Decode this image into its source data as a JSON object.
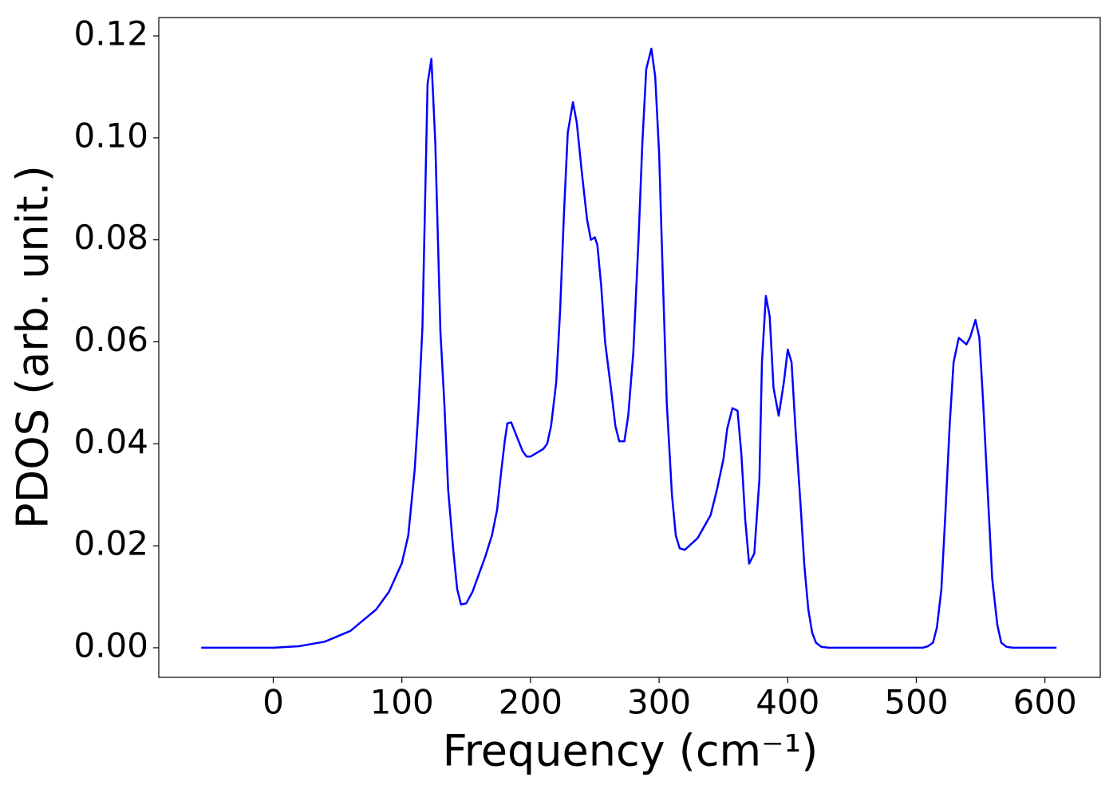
{
  "chart_data": {
    "type": "line",
    "x_label": "Frequency (cm⁻¹)",
    "y_label": "PDOS (arb. unit.)",
    "xlim": [
      -89,
      643
    ],
    "ylim": [
      -0.0058,
      0.1236
    ],
    "xticks": [
      0,
      100,
      200,
      300,
      400,
      500,
      600
    ],
    "yticks": [
      {
        "value": 0,
        "label": "0.00"
      },
      {
        "value": 0.02,
        "label": "0.02"
      },
      {
        "value": 0.04,
        "label": "0.04"
      },
      {
        "value": 0.06,
        "label": "0.06"
      },
      {
        "value": 0.08,
        "label": "0.08"
      },
      {
        "value": 0.1,
        "label": "0.10"
      },
      {
        "value": 0.12,
        "label": "0.12"
      }
    ],
    "series": [
      {
        "color": "#0000ff",
        "x": [
          -56,
          0,
          20,
          40,
          60,
          80,
          90,
          100,
          105,
          110,
          113,
          116,
          120,
          123,
          126,
          130,
          133,
          136,
          140,
          143,
          146,
          150,
          155,
          165,
          170,
          174,
          177,
          180,
          182,
          185,
          190,
          194,
          197,
          200,
          210,
          213,
          216,
          220,
          223,
          226,
          229,
          233,
          236,
          240,
          244,
          247,
          250,
          252,
          255,
          258,
          263,
          266,
          269,
          273,
          276,
          280,
          284,
          287,
          290,
          294,
          297,
          300,
          303,
          306,
          310,
          313,
          316,
          320,
          330,
          340,
          345,
          350,
          353,
          357,
          361,
          364,
          367,
          370,
          374,
          378,
          380,
          383,
          386,
          389,
          393,
          397,
          400,
          403,
          406,
          410,
          413,
          416,
          419,
          422,
          426,
          432,
          505,
          509,
          513,
          516,
          519.5,
          522.5,
          526,
          529,
          533,
          539,
          542,
          546,
          549,
          552,
          556,
          559,
          563,
          566,
          570,
          575,
          609
        ],
        "values": [
          0,
          0,
          0.0003,
          0.0012,
          0.0033,
          0.0075,
          0.011,
          0.0166,
          0.022,
          0.035,
          0.047,
          0.063,
          0.1106,
          0.1155,
          0.099,
          0.062,
          0.048,
          0.031,
          0.019,
          0.0115,
          0.0085,
          0.0087,
          0.011,
          0.018,
          0.022,
          0.027,
          0.034,
          0.0405,
          0.044,
          0.0442,
          0.041,
          0.0385,
          0.0375,
          0.0375,
          0.039,
          0.04,
          0.0435,
          0.052,
          0.066,
          0.085,
          0.101,
          0.107,
          0.103,
          0.093,
          0.084,
          0.08,
          0.0805,
          0.079,
          0.071,
          0.06,
          0.05,
          0.0435,
          0.0405,
          0.0405,
          0.0455,
          0.058,
          0.08,
          0.099,
          0.1135,
          0.1175,
          0.112,
          0.097,
          0.072,
          0.048,
          0.03,
          0.022,
          0.0195,
          0.0192,
          0.0215,
          0.026,
          0.031,
          0.037,
          0.043,
          0.047,
          0.0465,
          0.038,
          0.025,
          0.0165,
          0.0185,
          0.033,
          0.056,
          0.069,
          0.065,
          0.051,
          0.0455,
          0.052,
          0.0585,
          0.056,
          0.043,
          0.028,
          0.016,
          0.0075,
          0.003,
          0.001,
          0.0002,
          0,
          0,
          0.0003,
          0.001,
          0.004,
          0.0115,
          0.026,
          0.044,
          0.056,
          0.0608,
          0.0595,
          0.061,
          0.0643,
          0.0608,
          0.048,
          0.028,
          0.0135,
          0.0045,
          0.001,
          0.0002,
          0,
          0
        ]
      }
    ]
  }
}
